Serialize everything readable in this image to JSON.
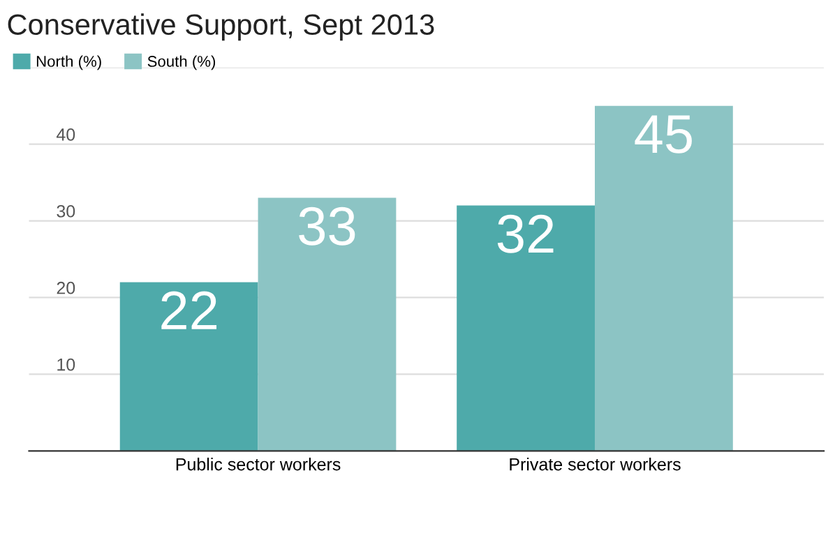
{
  "chart_data": {
    "type": "bar",
    "title": "Conservative Support, Sept 2013",
    "categories": [
      "Public sector workers",
      "Private sector workers"
    ],
    "series": [
      {
        "name": "North (%)",
        "color": "#4eaaaa",
        "values": [
          22,
          32
        ]
      },
      {
        "name": "South (%)",
        "color": "#8cc4c4",
        "values": [
          33,
          45
        ]
      }
    ],
    "ylim": [
      0,
      50
    ],
    "yticks": [
      10,
      20,
      30,
      40,
      {
        "value": 50,
        "label": null
      }
    ],
    "grid": "y",
    "legend": "top left",
    "data_labels": true
  }
}
